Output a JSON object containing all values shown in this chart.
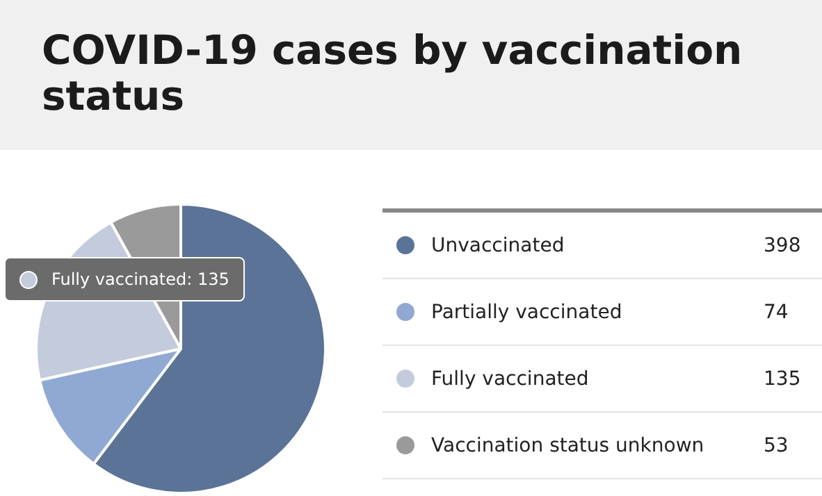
{
  "chart_data": {
    "type": "pie",
    "title": "COVID-19 cases by vaccination status",
    "categories": [
      "Unvaccinated",
      "Partially vaccinated",
      "Fully vaccinated",
      "Vaccination status unknown"
    ],
    "values": [
      398,
      74,
      135,
      53
    ],
    "colors": [
      "#5b7396",
      "#90a9d3",
      "#c3cbdc",
      "#9a9a9a"
    ],
    "legend": "right",
    "data_labels": true,
    "annotations": [
      "Fully vaccinated: 135"
    ]
  }
}
